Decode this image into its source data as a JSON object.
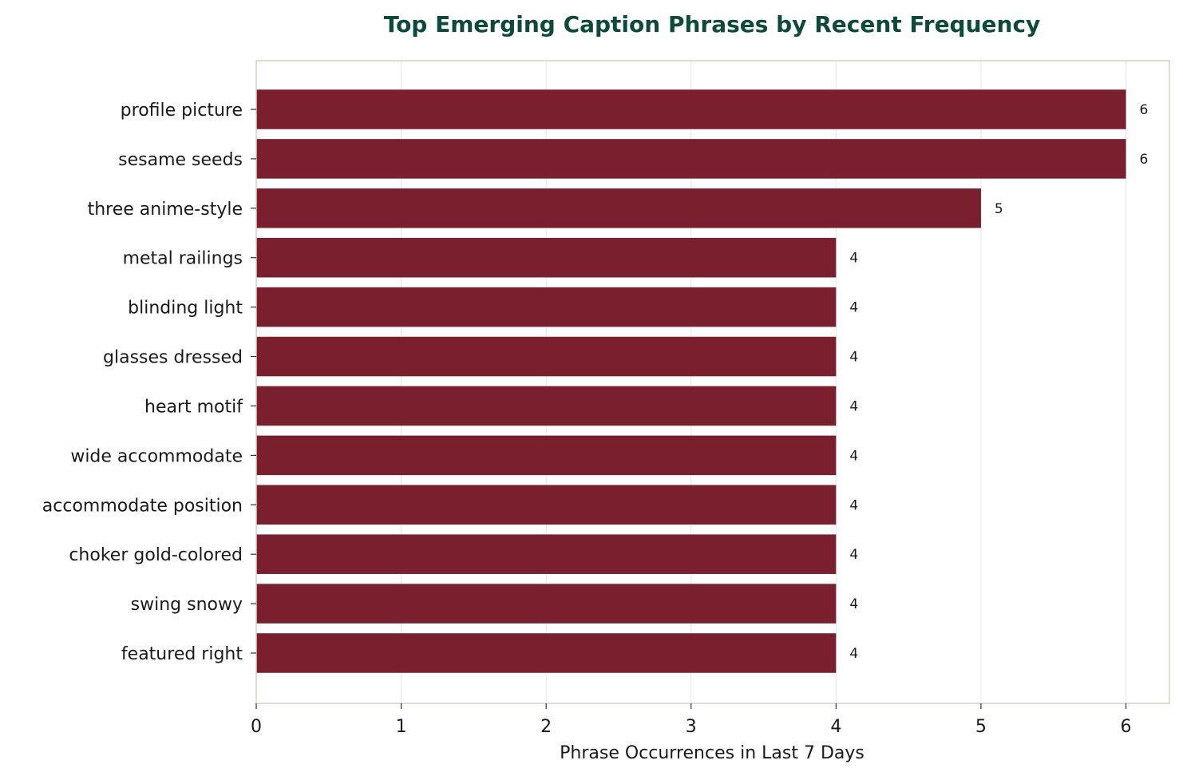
{
  "chart_data": {
    "type": "bar",
    "orientation": "horizontal",
    "title": "Top Emerging Caption Phrases by Recent Frequency",
    "xlabel": "Phrase Occurrences in Last 7 Days",
    "ylabel": "",
    "categories": [
      "profile picture",
      "sesame seeds",
      "three anime-style",
      "metal railings",
      "blinding light",
      "glasses dressed",
      "heart motif",
      "wide accommodate",
      "accommodate position",
      "choker gold-colored",
      "swing snowy",
      "featured right"
    ],
    "values": [
      6,
      6,
      5,
      4,
      4,
      4,
      4,
      4,
      4,
      4,
      4,
      4
    ],
    "data_labels": [
      "6",
      "6",
      "5",
      "4",
      "4",
      "4",
      "4",
      "4",
      "4",
      "4",
      "4",
      "4"
    ],
    "xlim": [
      0,
      6.3
    ],
    "xticks": [
      "0",
      "1",
      "2",
      "3",
      "4",
      "5",
      "6"
    ],
    "grid": "vertical",
    "legend": "none",
    "colors": {
      "bar": "#7a1f2d",
      "title": "#0d4a3c",
      "axis_frame": "#d8cfbf",
      "grid": "#e6e6e6",
      "text": "#1a1a1a"
    }
  }
}
